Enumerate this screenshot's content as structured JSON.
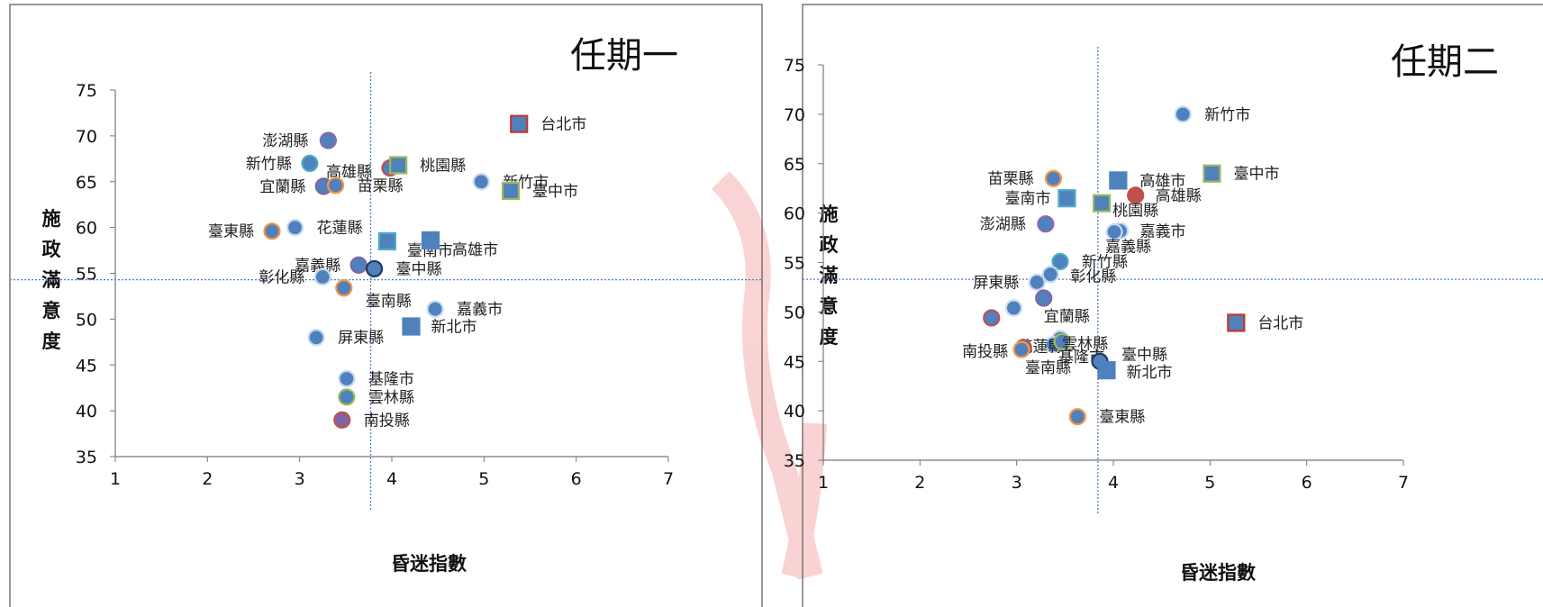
{
  "chart_data": [
    {
      "type": "scatter",
      "title": "任期一",
      "xlabel": "昏迷指數",
      "ylabel": "施政滿意度",
      "xlim": [
        1,
        7
      ],
      "ylim": [
        35,
        75
      ],
      "xticks": [
        "1",
        "2",
        "3",
        "4",
        "5",
        "6",
        "7"
      ],
      "yticks": [
        "35",
        "40",
        "45",
        "50",
        "55",
        "60",
        "65",
        "70",
        "75"
      ],
      "ref_lines": {
        "x": 3.77,
        "y": 54.3
      },
      "points": [
        {
          "label": "台北市",
          "x": 5.38,
          "y": 71.3,
          "shape": "square",
          "edge": "#c0392b",
          "fill": "#4f81bd"
        },
        {
          "label": "澎湖縣",
          "x": 3.31,
          "y": 69.5,
          "shape": "circle",
          "edge": "#8e6aa8",
          "fill": "#4f81bd"
        },
        {
          "label": "新竹縣",
          "x": 3.11,
          "y": 67.0,
          "shape": "circle",
          "edge": "#4bacc6",
          "fill": "#4f81bd"
        },
        {
          "label": "高雄縣",
          "x": 3.98,
          "y": 66.5,
          "shape": "circle",
          "edge": "#c0504d",
          "fill": "#4f81bd"
        },
        {
          "label": "桃園縣",
          "x": 4.07,
          "y": 66.8,
          "shape": "square",
          "edge": "#9bbb59",
          "fill": "#4f81bd"
        },
        {
          "label": "新竹市",
          "x": 4.97,
          "y": 65.0,
          "shape": "circle",
          "edge": "#c6d9f0",
          "fill": "#4f81bd"
        },
        {
          "label": "宜蘭縣",
          "x": 3.26,
          "y": 64.5,
          "shape": "circle",
          "edge": "#8064a2",
          "fill": "#4f81bd"
        },
        {
          "label": "苗栗縣",
          "x": 3.39,
          "y": 64.6,
          "shape": "circle",
          "edge": "#f79646",
          "fill": "#4f81bd"
        },
        {
          "label": "臺中市",
          "x": 5.29,
          "y": 64.0,
          "shape": "square",
          "edge": "#9bbb59",
          "fill": "#4f81bd"
        },
        {
          "label": "花蓮縣",
          "x": 2.95,
          "y": 60.0,
          "shape": "circle",
          "edge": "#c6d9f0",
          "fill": "#4f81bd"
        },
        {
          "label": "臺東縣",
          "x": 2.7,
          "y": 59.6,
          "shape": "circle",
          "edge": "#f79646",
          "fill": "#4f81bd"
        },
        {
          "label": "臺南市",
          "x": 3.95,
          "y": 58.5,
          "shape": "square",
          "edge": "#4bacc6",
          "fill": "#4f81bd"
        },
        {
          "label": "高雄市",
          "x": 4.42,
          "y": 58.6,
          "shape": "square",
          "edge": "#4f81bd",
          "fill": "#4f81bd"
        },
        {
          "label": "嘉義縣",
          "x": 3.64,
          "y": 55.9,
          "shape": "circle",
          "edge": "#8064a2",
          "fill": "#4f81bd"
        },
        {
          "label": "臺中縣",
          "x": 3.81,
          "y": 55.5,
          "shape": "circle",
          "edge": "#1f3864",
          "fill": "#4f81bd"
        },
        {
          "label": "彰化縣",
          "x": 3.25,
          "y": 54.6,
          "shape": "circle",
          "edge": "#c6d9f0",
          "fill": "#4f81bd"
        },
        {
          "label": "臺南縣",
          "x": 3.48,
          "y": 53.4,
          "shape": "circle",
          "edge": "#f79646",
          "fill": "#4f81bd"
        },
        {
          "label": "嘉義市",
          "x": 4.47,
          "y": 51.1,
          "shape": "circle",
          "edge": "#c6d9f0",
          "fill": "#4f81bd"
        },
        {
          "label": "新北市",
          "x": 4.21,
          "y": 49.2,
          "shape": "square",
          "edge": "#4f81bd",
          "fill": "#4f81bd"
        },
        {
          "label": "屏東縣",
          "x": 3.18,
          "y": 48.0,
          "shape": "circle",
          "edge": "#c6d9f0",
          "fill": "#4f81bd"
        },
        {
          "label": "基隆市",
          "x": 3.51,
          "y": 43.5,
          "shape": "circle",
          "edge": "#c6d9f0",
          "fill": "#4f81bd"
        },
        {
          "label": "雲林縣",
          "x": 3.51,
          "y": 41.5,
          "shape": "circle",
          "edge": "#9bbb59",
          "fill": "#4f81bd"
        },
        {
          "label": "南投縣",
          "x": 3.46,
          "y": 39.0,
          "shape": "circle",
          "edge": "#c0504d",
          "fill": "#8064a2"
        }
      ]
    },
    {
      "type": "scatter",
      "title": "任期二",
      "xlabel": "昏迷指數",
      "ylabel": "施政滿意度",
      "xlim": [
        1,
        7
      ],
      "ylim": [
        35,
        75
      ],
      "xticks": [
        "1",
        "2",
        "3",
        "4",
        "5",
        "6",
        "7"
      ],
      "yticks": [
        "35",
        "40",
        "45",
        "50",
        "55",
        "60",
        "65",
        "70",
        "75"
      ],
      "ref_lines": {
        "x": 3.84,
        "y": 53.3
      },
      "points": [
        {
          "label": "新竹市",
          "x": 4.72,
          "y": 70.0,
          "shape": "circle",
          "edge": "#c6d9f0",
          "fill": "#4f81bd"
        },
        {
          "label": "臺中市",
          "x": 5.02,
          "y": 64.0,
          "shape": "square",
          "edge": "#9bbb59",
          "fill": "#4f81bd"
        },
        {
          "label": "苗栗縣",
          "x": 3.38,
          "y": 63.5,
          "shape": "circle",
          "edge": "#f79646",
          "fill": "#4f81bd"
        },
        {
          "label": "高雄市",
          "x": 4.05,
          "y": 63.3,
          "shape": "square",
          "edge": "#4f81bd",
          "fill": "#4f81bd"
        },
        {
          "label": "高雄縣",
          "x": 4.23,
          "y": 61.8,
          "shape": "circle",
          "edge": "#c0504d",
          "fill": "#c0504d"
        },
        {
          "label": "臺南市",
          "x": 3.52,
          "y": 61.5,
          "shape": "square",
          "edge": "#4bacc6",
          "fill": "#4f81bd"
        },
        {
          "label": "桃園縣",
          "x": 3.88,
          "y": 61.0,
          "shape": "square",
          "edge": "#9bbb59",
          "fill": "#4f81bd"
        },
        {
          "label": "澎湖縣",
          "x": 3.3,
          "y": 58.9,
          "shape": "circle",
          "edge": "#8e6aa8",
          "fill": "#4f81bd"
        },
        {
          "label": "嘉義市",
          "x": 4.07,
          "y": 58.2,
          "shape": "circle",
          "edge": "#c6d9f0",
          "fill": "#4f81bd"
        },
        {
          "label": "嘉義縣",
          "x": 4.01,
          "y": 58.1,
          "shape": "circle",
          "edge": "#c6d9f0",
          "fill": "#4f81bd"
        },
        {
          "label": "新竹縣",
          "x": 3.45,
          "y": 55.1,
          "shape": "circle",
          "edge": "#4bacc6",
          "fill": "#4f81bd"
        },
        {
          "label": "彰化縣",
          "x": 3.35,
          "y": 53.8,
          "shape": "circle",
          "edge": "#c6d9f0",
          "fill": "#4f81bd"
        },
        {
          "label": "屏東縣",
          "x": 3.21,
          "y": 53.0,
          "shape": "circle",
          "edge": "#c6d9f0",
          "fill": "#4f81bd"
        },
        {
          "label": "宜蘭縣",
          "x": 3.28,
          "y": 51.4,
          "shape": "circle",
          "edge": "#8064a2",
          "fill": "#4f81bd"
        },
        {
          "label": "台北市",
          "x": 5.27,
          "y": 48.9,
          "shape": "square",
          "edge": "#c0392b",
          "fill": "#4f81bd"
        },
        {
          "label": "",
          "x": 2.97,
          "y": 50.4,
          "shape": "circle",
          "edge": "#c6d9f0",
          "fill": "#4f81bd"
        },
        {
          "label": "",
          "x": 2.74,
          "y": 49.4,
          "shape": "circle",
          "edge": "#c0504d",
          "fill": "#4f81bd"
        },
        {
          "label": "基隆市",
          "x": 3.45,
          "y": 47.3,
          "shape": "circle",
          "edge": "#c6d9f0",
          "fill": "#4f81bd"
        },
        {
          "label": "花蓮縣",
          "x": 3.38,
          "y": 46.7,
          "shape": "circle",
          "edge": "#c6d9f0",
          "fill": "#4f81bd"
        },
        {
          "label": "南投縣",
          "x": 3.07,
          "y": 46.4,
          "shape": "circle",
          "edge": "#c0504d",
          "fill": "#4f81bd"
        },
        {
          "label": "臺南縣",
          "x": 3.05,
          "y": 46.2,
          "shape": "circle",
          "edge": "#f79646",
          "fill": "#4f81bd"
        },
        {
          "label": "雲林縣",
          "x": 3.47,
          "y": 47.0,
          "shape": "circle",
          "edge": "#9bbb59",
          "fill": "#4f81bd"
        },
        {
          "label": "臺中縣",
          "x": 3.86,
          "y": 45.0,
          "shape": "circle",
          "edge": "#1f3864",
          "fill": "#4f81bd"
        },
        {
          "label": "新北市",
          "x": 3.93,
          "y": 44.1,
          "shape": "square",
          "edge": "#4f81bd",
          "fill": "#4f81bd"
        },
        {
          "label": "臺東縣",
          "x": 3.63,
          "y": 39.4,
          "shape": "circle",
          "edge": "#f79646",
          "fill": "#4f81bd"
        }
      ]
    }
  ]
}
